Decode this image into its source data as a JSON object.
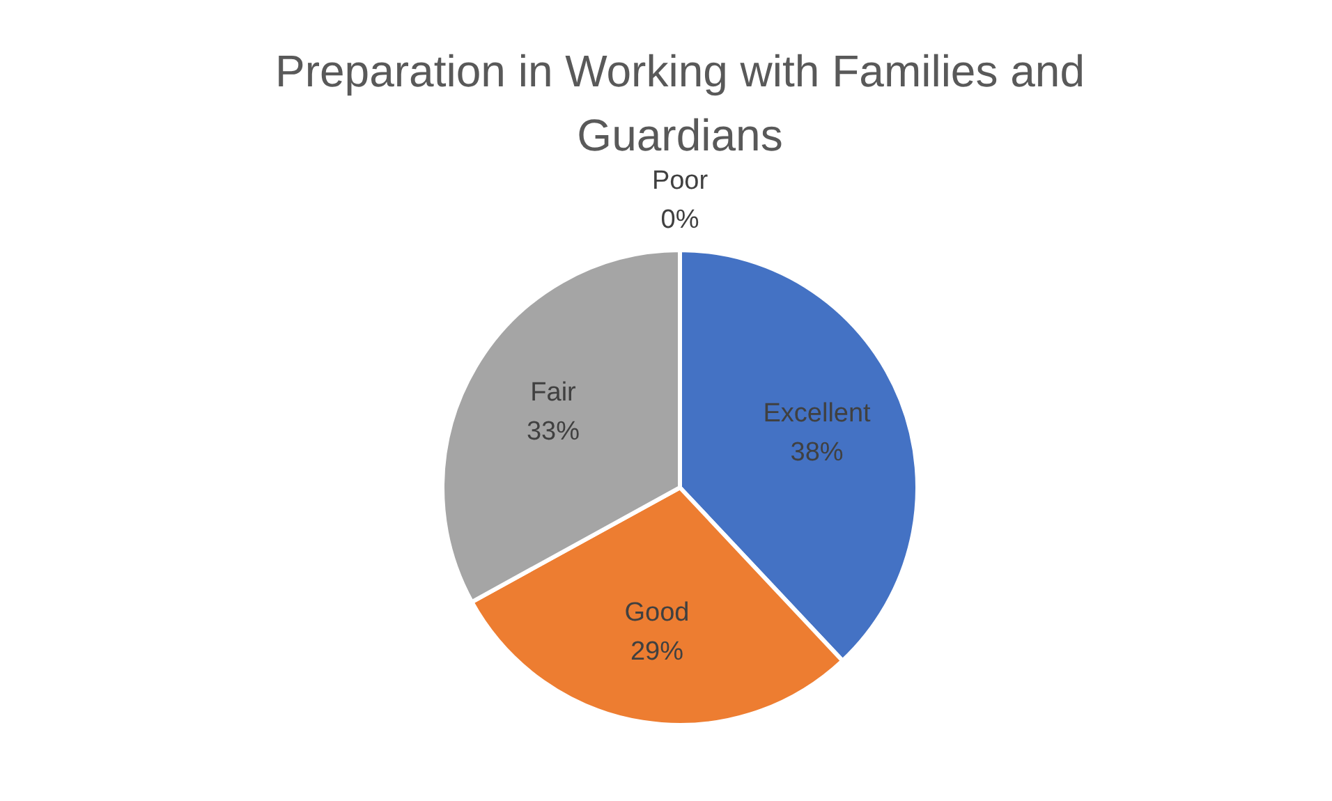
{
  "chart_data": {
    "type": "pie",
    "title": "Preparation in Working with Families and Guardians",
    "categories": [
      "Excellent",
      "Good",
      "Fair",
      "Poor"
    ],
    "values": [
      38,
      29,
      33,
      0
    ],
    "colors": [
      "#4472c4",
      "#ed7d31",
      "#a5a5a5",
      "#ffc000"
    ],
    "value_labels": [
      "38%",
      "29%",
      "33%",
      "0%"
    ],
    "legend": false
  }
}
